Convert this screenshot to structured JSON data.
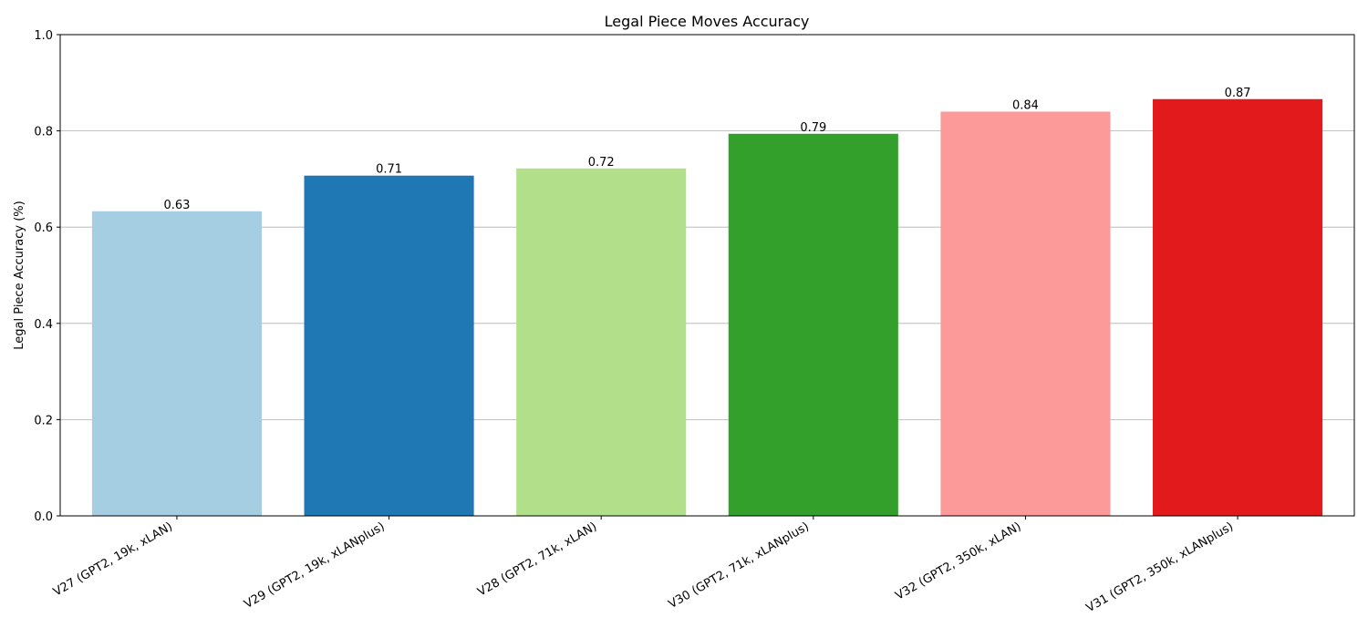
{
  "chart_data": {
    "type": "bar",
    "title": "Legal Piece Moves Accuracy",
    "xlabel": "",
    "ylabel": "Legal Piece Accuracy (%)",
    "ylim": [
      0,
      1
    ],
    "yticks": [
      "0.0",
      "0.2",
      "0.4",
      "0.6",
      "0.8",
      "1.0"
    ],
    "grid": "y",
    "categories": [
      "V27 (GPT2, 19k, xLAN)",
      "V29 (GPT2, 19k, xLANplus)",
      "V28 (GPT2, 71k, xLAN)",
      "V30 (GPT2, 71k, xLANplus)",
      "V32 (GPT2, 350k, xLAN)",
      "V31 (GPT2, 350k, xLANplus)"
    ],
    "values": [
      0.633,
      0.707,
      0.722,
      0.794,
      0.84,
      0.866
    ],
    "value_labels": [
      "0.63",
      "0.71",
      "0.72",
      "0.79",
      "0.84",
      "0.87"
    ],
    "colors": [
      "#a6cee3",
      "#1f78b4",
      "#b2df8a",
      "#33a02c",
      "#fb9a99",
      "#e31a1c"
    ]
  }
}
